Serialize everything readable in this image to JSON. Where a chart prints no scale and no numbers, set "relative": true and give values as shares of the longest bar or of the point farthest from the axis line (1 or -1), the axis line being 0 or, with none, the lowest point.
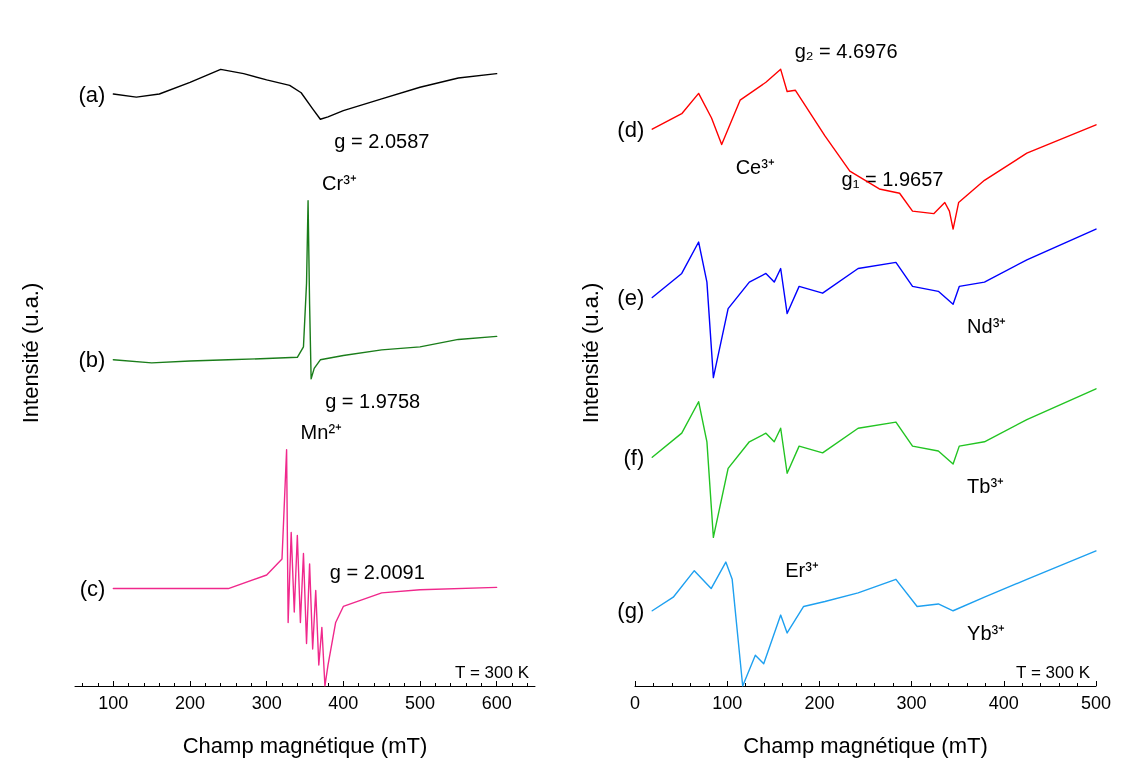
{
  "chart_data": [
    {
      "type": "line",
      "relative": true,
      "xlabel": "Champ magnétique (mT)",
      "ylabel": "Intensité (u.a.)",
      "xlim": [
        50,
        650
      ],
      "xticks": [
        100,
        200,
        300,
        400,
        500,
        600
      ],
      "series": [
        {
          "name": "(a)",
          "color": "#000000",
          "x": [
            100,
            130,
            160,
            200,
            240,
            270,
            300,
            330,
            345,
            360,
            370,
            380,
            400,
            450,
            500,
            550,
            600
          ],
          "values": [
            0.96,
            0.955,
            0.96,
            0.979,
            1.0,
            0.993,
            0.983,
            0.974,
            0.962,
            0.936,
            0.919,
            0.923,
            0.933,
            0.952,
            0.971,
            0.986,
            0.993
          ]
        },
        {
          "name": "(b)",
          "color": "#1a7d1a",
          "x": [
            100,
            150,
            200,
            250,
            300,
            340,
            348,
            352,
            354,
            356,
            358,
            362,
            370,
            400,
            450,
            500,
            550,
            600
          ],
          "values": [
            0.529,
            0.524,
            0.527,
            0.529,
            0.531,
            0.533,
            0.55,
            0.653,
            0.787,
            0.619,
            0.498,
            0.515,
            0.529,
            0.536,
            0.545,
            0.55,
            0.562,
            0.567
          ]
        },
        {
          "name": "(c)",
          "color": "#f0288c",
          "x": [
            100,
            250,
            300,
            320,
            326,
            328,
            332,
            336,
            340,
            344,
            348,
            352,
            356,
            360,
            364,
            368,
            372,
            376,
            380,
            390,
            400,
            450,
            500,
            600
          ],
          "values": [
            0.158,
            0.158,
            0.18,
            0.206,
            0.383,
            0.103,
            0.249,
            0.12,
            0.244,
            0.103,
            0.215,
            0.069,
            0.198,
            0.06,
            0.155,
            0.034,
            0.095,
            0.0,
            0.034,
            0.103,
            0.129,
            0.151,
            0.156,
            0.16
          ]
        }
      ],
      "annotations": [
        {
          "text": "g = 2.0587",
          "x": 370,
          "y": 0.919
        },
        {
          "text": "Cr³⁺",
          "x": 354,
          "y": 0.787
        },
        {
          "text": "g = 1.9758",
          "x": 358,
          "y": 0.498
        },
        {
          "text": "Mn²⁺",
          "x": 326,
          "y": 0.383
        },
        {
          "text": "g = 2.0091",
          "x": 364,
          "y": 0.155
        },
        "T = 300 K"
      ]
    },
    {
      "type": "line",
      "relative": true,
      "xlabel": "Champ magnétique (mT)",
      "ylabel": "Intensité (u.a.)",
      "xlim": [
        0,
        500
      ],
      "xticks": [
        0,
        100,
        200,
        300,
        400,
        500
      ],
      "series": [
        {
          "name": "(d)",
          "color": "#ff0000",
          "x": [
            18.7,
            50.7,
            69,
            83,
            94,
            114,
            142,
            158,
            165,
            174,
            206,
            233,
            265,
            287,
            301,
            324,
            336,
            341,
            345,
            351,
            379,
            425,
            500
          ],
          "values": [
            0.903,
            0.928,
            0.961,
            0.921,
            0.878,
            0.95,
            0.979,
            1.0,
            0.964,
            0.966,
            0.892,
            0.835,
            0.806,
            0.799,
            0.77,
            0.766,
            0.784,
            0.77,
            0.741,
            0.784,
            0.82,
            0.864,
            0.91
          ]
        },
        {
          "name": "(e)",
          "color": "#0000ff",
          "x": [
            18.7,
            50.7,
            69,
            78,
            85,
            101,
            124,
            142,
            151,
            158,
            165,
            178,
            203.5,
            242,
            283,
            301,
            329,
            345,
            351.7,
            379,
            425,
            500
          ],
          "values": [
            0.63,
            0.669,
            0.72,
            0.655,
            0.5,
            0.612,
            0.655,
            0.669,
            0.655,
            0.677,
            0.604,
            0.648,
            0.637,
            0.677,
            0.687,
            0.648,
            0.64,
            0.619,
            0.648,
            0.655,
            0.691,
            0.741
          ]
        },
        {
          "name": "(f)",
          "color": "#22c422",
          "x": [
            18.7,
            50.7,
            69,
            78,
            85,
            101,
            124,
            142,
            151,
            158,
            165,
            178,
            203.5,
            242,
            283,
            301,
            329,
            345,
            351.7,
            379,
            425,
            500
          ],
          "values": [
            0.371,
            0.41,
            0.461,
            0.396,
            0.241,
            0.353,
            0.396,
            0.41,
            0.396,
            0.418,
            0.345,
            0.389,
            0.378,
            0.418,
            0.428,
            0.389,
            0.381,
            0.36,
            0.389,
            0.396,
            0.432,
            0.482
          ]
        },
        {
          "name": "(g)",
          "color": "#1ea0f0",
          "x": [
            18.7,
            41.5,
            64.3,
            82.6,
            98.5,
            105.4,
            116.8,
            130.5,
            139.6,
            158,
            165,
            182.9,
            206,
            242,
            283,
            306,
            329,
            345,
            379,
            425,
            500
          ],
          "values": [
            0.122,
            0.144,
            0.187,
            0.158,
            0.201,
            0.173,
            0.0,
            0.05,
            0.036,
            0.115,
            0.086,
            0.129,
            0.137,
            0.151,
            0.173,
            0.129,
            0.133,
            0.122,
            0.144,
            0.173,
            0.219
          ]
        }
      ],
      "annotations": [
        {
          "text": "g₂ = 4.6976",
          "x": 158,
          "y": 1.0
        },
        {
          "text": "Ce³⁺",
          "x": 94,
          "y": 0.878
        },
        {
          "text": "g₁ = 1.9657",
          "x": 341,
          "y": 0.77
        },
        {
          "text": "Nd³⁺",
          "x": 345,
          "y": 0.619
        },
        {
          "text": "Tb³⁺",
          "x": 345,
          "y": 0.36
        },
        {
          "text": "Er³⁺",
          "x": 206,
          "y": 0.137
        },
        {
          "text": "Yb³⁺",
          "x": 345,
          "y": 0.122
        },
        "T = 300 K"
      ]
    }
  ]
}
